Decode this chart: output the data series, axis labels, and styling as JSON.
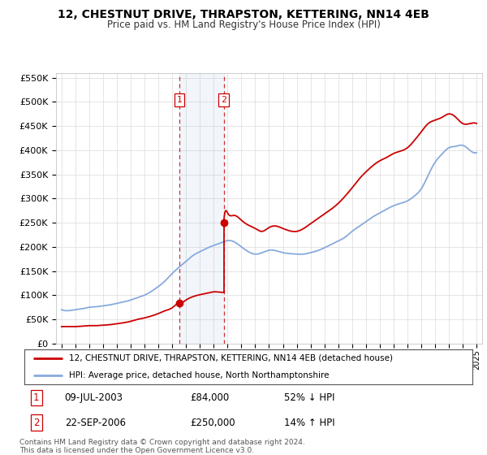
{
  "title": "12, CHESTNUT DRIVE, THRAPSTON, KETTERING, NN14 4EB",
  "subtitle": "Price paid vs. HM Land Registry's House Price Index (HPI)",
  "legend_line1": "12, CHESTNUT DRIVE, THRAPSTON, KETTERING, NN14 4EB (detached house)",
  "legend_line2": "HPI: Average price, detached house, North Northamptonshire",
  "footnote1": "Contains HM Land Registry data © Crown copyright and database right 2024.",
  "footnote2": "This data is licensed under the Open Government Licence v3.0.",
  "transaction1_label": "1",
  "transaction1_date": "09-JUL-2003",
  "transaction1_price": "£84,000",
  "transaction1_hpi": "52% ↓ HPI",
  "transaction2_label": "2",
  "transaction2_date": "22-SEP-2006",
  "transaction2_price": "£250,000",
  "transaction2_hpi": "14% ↑ HPI",
  "sale_color": "#cc0000",
  "hpi_color": "#88aadd",
  "vline_color": "#cc0000",
  "background_color": "#ffffff",
  "grid_color": "#e0e0e0",
  "ylim": [
    0,
    560000
  ],
  "yticks": [
    0,
    50000,
    100000,
    150000,
    200000,
    250000,
    300000,
    350000,
    400000,
    450000,
    500000,
    550000
  ],
  "sale1_x": 2003.52,
  "sale1_y": 84000,
  "sale2_x": 2006.72,
  "sale2_y": 250000,
  "xmin": 1994.6,
  "xmax": 2025.4
}
